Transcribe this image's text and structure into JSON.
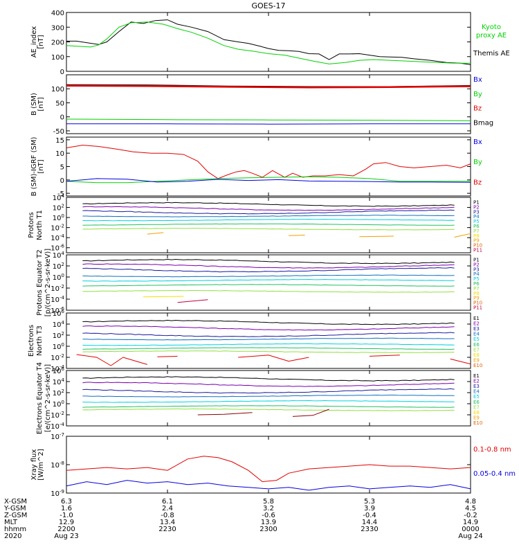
{
  "colors": {
    "black": "#000000",
    "red": "#e00000",
    "green": "#00d000",
    "blue": "#0000e0",
    "darkred": "#8b0000",
    "purple": "#7a00b0",
    "navy": "#1a1aa0",
    "teal": "#1070c0",
    "cyan": "#00d0e0",
    "green2": "#20c060",
    "lime": "#90e040",
    "yellow": "#f0e000",
    "orange": "#f0a000",
    "orangered": "#e06000",
    "crimson": "#c00040"
  },
  "chart_data": [
    {
      "type": "line",
      "title": "GOES-17",
      "ylabel": "AE_index [nT]",
      "ylim": [
        0,
        400
      ],
      "yticks": [
        "400",
        "300",
        "200",
        "100",
        "0"
      ],
      "x_range_hours": [
        22.0,
        24.0
      ],
      "legend": [
        {
          "label": "Kyoto proxy AE",
          "color": "#00d000"
        },
        {
          "label": "Themis AE",
          "color": "#000000"
        }
      ],
      "series": [
        {
          "name": "Themis AE",
          "color": "#000000",
          "x": [
            22.0,
            22.05,
            22.1,
            22.16,
            22.2,
            22.26,
            22.32,
            22.38,
            22.44,
            22.5,
            22.55,
            22.62,
            22.7,
            22.78,
            22.85,
            22.9,
            22.96,
            23.0,
            23.05,
            23.1,
            23.15,
            23.2,
            23.25,
            23.3,
            23.35,
            23.4,
            23.45,
            23.5,
            23.55,
            23.6,
            23.66,
            23.72,
            23.8,
            23.88,
            23.95,
            24.0
          ],
          "y": [
            205,
            205,
            195,
            182,
            200,
            270,
            335,
            325,
            345,
            350,
            320,
            300,
            270,
            215,
            200,
            190,
            170,
            155,
            142,
            140,
            135,
            120,
            118,
            80,
            118,
            118,
            120,
            110,
            100,
            98,
            95,
            85,
            75,
            60,
            55,
            45
          ]
        },
        {
          "name": "Kyoto proxy AE",
          "color": "#00d000",
          "x": [
            22.0,
            22.06,
            22.12,
            22.16,
            22.2,
            22.26,
            22.32,
            22.4,
            22.48,
            22.55,
            22.62,
            22.7,
            22.78,
            22.85,
            22.92,
            23.0,
            23.08,
            23.15,
            23.22,
            23.3,
            23.38,
            23.45,
            23.52,
            23.6,
            23.68,
            23.76,
            23.84,
            23.92,
            24.0
          ],
          "y": [
            175,
            170,
            165,
            180,
            220,
            300,
            330,
            335,
            320,
            290,
            265,
            225,
            175,
            150,
            138,
            120,
            110,
            90,
            70,
            50,
            60,
            75,
            80,
            75,
            70,
            65,
            60,
            55,
            55
          ]
        }
      ]
    },
    {
      "type": "line",
      "ylabel": "B (SM) [nT]",
      "ylim": [
        -60,
        150
      ],
      "yticks": [
        "100",
        "50",
        "0",
        "-50"
      ],
      "legend": [
        {
          "label": "Bx",
          "color": "#0000e0"
        },
        {
          "label": "By",
          "color": "#00d000"
        },
        {
          "label": "Bz",
          "color": "#e00000"
        },
        {
          "label": "Bmag",
          "color": "#000000"
        }
      ],
      "series": [
        {
          "name": "Bx",
          "color": "#0000e0",
          "x": [
            22.0,
            22.5,
            23.0,
            23.5,
            24.0
          ],
          "y": [
            -25,
            -25,
            -26,
            -25,
            -25
          ]
        },
        {
          "name": "By",
          "color": "#00d000",
          "x": [
            22.0,
            22.5,
            23.0,
            23.5,
            24.0
          ],
          "y": [
            -8,
            -10,
            -11,
            -12,
            -14
          ]
        },
        {
          "name": "Bmag",
          "color": "#000000",
          "x": [
            22.0,
            22.4,
            22.8,
            23.2,
            23.6,
            24.0
          ],
          "y": [
            115,
            114,
            110,
            108,
            108,
            112
          ]
        },
        {
          "name": "Bz",
          "color": "#e00000",
          "x": [
            22.0,
            22.4,
            22.8,
            23.2,
            23.6,
            24.0
          ],
          "y": [
            111,
            110,
            107,
            105,
            106,
            109
          ]
        }
      ]
    },
    {
      "type": "line",
      "ylabel": "B (SM)-IGRF (SM) [nT]",
      "ylim": [
        -6,
        16
      ],
      "yticks": [
        "15",
        "10",
        "5",
        "0",
        "-5"
      ],
      "legend": [
        {
          "label": "Bx",
          "color": "#0000e0"
        },
        {
          "label": "By",
          "color": "#00d000"
        },
        {
          "label": "Bz",
          "color": "#e00000"
        }
      ],
      "series": [
        {
          "name": "Bz",
          "color": "#e00000",
          "x": [
            22.0,
            22.08,
            22.16,
            22.25,
            22.33,
            22.42,
            22.5,
            22.58,
            22.65,
            22.7,
            22.75,
            22.8,
            22.84,
            22.88,
            22.92,
            22.97,
            23.02,
            23.08,
            23.12,
            23.17,
            23.22,
            23.28,
            23.35,
            23.42,
            23.48,
            23.52,
            23.58,
            23.65,
            23.72,
            23.8,
            23.88,
            23.95,
            24.0
          ],
          "y": [
            12,
            13,
            12.5,
            11.5,
            10.5,
            10,
            10,
            9.5,
            7,
            3,
            0.5,
            2,
            3,
            3.5,
            2.5,
            1,
            3.5,
            1,
            2.5,
            1,
            1.5,
            1.5,
            2,
            1.5,
            4,
            6,
            6.5,
            5,
            4.5,
            5,
            5.5,
            4.5,
            6
          ]
        },
        {
          "name": "By",
          "color": "#00d000",
          "x": [
            22.0,
            22.15,
            22.3,
            22.45,
            22.6,
            22.75,
            22.9,
            23.05,
            23.2,
            23.35,
            23.5,
            23.65,
            23.8,
            24.0
          ],
          "y": [
            -0.5,
            -1,
            -1,
            -0.5,
            0,
            0.5,
            0.8,
            1,
            1.2,
            1,
            0.5,
            -0.5,
            -0.5,
            -0.5
          ]
        },
        {
          "name": "Bx",
          "color": "#0000e0",
          "x": [
            22.0,
            22.15,
            22.3,
            22.45,
            22.6,
            22.75,
            22.9,
            23.05,
            23.2,
            23.35,
            23.5,
            23.65,
            23.8,
            24.0
          ],
          "y": [
            -0.5,
            0.5,
            0.3,
            -0.8,
            -0.5,
            0.2,
            -0.2,
            0.1,
            -0.4,
            -0.5,
            -0.6,
            -0.8,
            -0.8,
            -0.9
          ]
        }
      ]
    },
    {
      "type": "line",
      "ylabel": "Protons North T1",
      "yscale": "log",
      "ylim_exp": [
        -7,
        4
      ],
      "yticks": [
        "10^4",
        "10^2",
        "10^0",
        "10^-2",
        "10^-4",
        "10^-6"
      ],
      "channels": [
        "P1",
        "P2",
        "P3",
        "P4",
        "P5",
        "P6",
        "P7",
        "P8",
        "P9",
        "P10",
        "P11"
      ],
      "levels_exp": [
        2.6,
        1.8,
        1.1,
        0.3,
        -0.5,
        -1.4,
        -2.3
      ],
      "trace_colors": [
        "#000000",
        "#7a00b0",
        "#1a1aa0",
        "#1070c0",
        "#00d0e0",
        "#20c060",
        "#90e040",
        "#f0e000",
        "#f0a000",
        "#e06000",
        "#c00040"
      ],
      "fragments": [
        {
          "color": "#f0a000",
          "x": [
            22.4,
            22.48
          ],
          "y": [
            -3.3,
            -3.0
          ]
        },
        {
          "color": "#f0a000",
          "x": [
            23.1,
            23.18
          ],
          "y": [
            -3.6,
            -3.5
          ]
        },
        {
          "color": "#f0a000",
          "x": [
            23.45,
            23.62
          ],
          "y": [
            -3.8,
            -3.7
          ]
        },
        {
          "color": "#f0a000",
          "x": [
            23.92,
            24.0
          ],
          "y": [
            -3.9,
            -3.2
          ]
        }
      ]
    },
    {
      "type": "line",
      "ylabel": "Protons Equator T2 [p/(cm^2-s-sr-keV)]",
      "yscale": "log",
      "ylim_exp": [
        -6,
        4
      ],
      "yticks": [
        "10^4",
        "10^2",
        "10^0",
        "10^-2",
        "10^-4",
        "10^-6"
      ],
      "channels": [
        "P1",
        "P2",
        "P3",
        "P4",
        "P5",
        "P6",
        "P7",
        "P8",
        "P9",
        "P10",
        "P11"
      ],
      "levels_exp": [
        2.8,
        2.0,
        1.3,
        0.2,
        -0.6,
        -1.5,
        -2.6
      ],
      "trace_colors": [
        "#000000",
        "#7a00b0",
        "#1a1aa0",
        "#1070c0",
        "#00d0e0",
        "#20c060",
        "#90e040",
        "#f0e000",
        "#f0a000",
        "#e06000",
        "#c00040"
      ],
      "fragments": [
        {
          "color": "#f0e000",
          "x": [
            22.38,
            22.58
          ],
          "y": [
            -3.6,
            -3.5
          ]
        },
        {
          "color": "#c00040",
          "x": [
            22.55,
            22.7
          ],
          "y": [
            -4.6,
            -4.1
          ]
        }
      ]
    },
    {
      "type": "line",
      "ylabel": "Electrons North T3",
      "yscale": "log",
      "ylim_exp": [
        -4,
        6
      ],
      "yticks": [
        "10^6",
        "10^4",
        "10^2",
        "10^0",
        "10^-2",
        "10^-4"
      ],
      "channels": [
        "E1",
        "E2",
        "E3",
        "E4",
        "E5",
        "E6",
        "E7",
        "E8",
        "E9",
        "E10"
      ],
      "levels_exp": [
        4.3,
        3.3,
        2.1,
        1.3,
        0.3,
        -0.4,
        -1.0
      ],
      "trace_colors": [
        "#000000",
        "#7a00b0",
        "#1a1aa0",
        "#1070c0",
        "#00d0e0",
        "#20c060",
        "#90e040",
        "#f0e000",
        "#f0a000",
        "#e06000"
      ],
      "fragments": [
        {
          "color": "#e00000",
          "x": [
            22.05,
            22.15,
            22.22
          ],
          "y": [
            -1.5,
            -2.0,
            -3.5
          ]
        },
        {
          "color": "#e00000",
          "x": [
            22.22,
            22.28
          ],
          "y": [
            -3.5,
            -2.0
          ]
        },
        {
          "color": "#e00000",
          "x": [
            22.28,
            22.4
          ],
          "y": [
            -2.0,
            -3.3
          ]
        },
        {
          "color": "#e00000",
          "x": [
            22.45,
            22.55
          ],
          "y": [
            -1.9,
            -1.8
          ]
        },
        {
          "color": "#e00000",
          "x": [
            22.85,
            23.0,
            23.1
          ],
          "y": [
            -2.0,
            -1.6,
            -2.7
          ]
        },
        {
          "color": "#e00000",
          "x": [
            23.1,
            23.2
          ],
          "y": [
            -2.7,
            -2.0
          ]
        },
        {
          "color": "#e00000",
          "x": [
            23.5,
            23.65
          ],
          "y": [
            -1.8,
            -1.6
          ]
        },
        {
          "color": "#e00000",
          "x": [
            23.9,
            24.0
          ],
          "y": [
            -2.3,
            -3.2
          ]
        }
      ]
    },
    {
      "type": "line",
      "ylabel": "Electrons Equator T4 [e/(cm^2-s-sr-keV)]",
      "yscale": "log",
      "ylim_exp": [
        -4,
        6
      ],
      "yticks": [
        "10^6",
        "10^4",
        "10^2",
        "10^0",
        "10^-2",
        "10^-4"
      ],
      "channels": [
        "E1",
        "E2",
        "E3",
        "E4",
        "E5",
        "E6",
        "E7",
        "E8",
        "E9",
        "E10"
      ],
      "levels_exp": [
        4.5,
        3.5,
        2.3,
        1.4,
        0.4,
        -0.5,
        -1.1
      ],
      "trace_colors": [
        "#000000",
        "#7a00b0",
        "#1a1aa0",
        "#1070c0",
        "#00d0e0",
        "#20c060",
        "#90e040",
        "#f0e000",
        "#f0a000",
        "#e06000"
      ],
      "fragments": [
        {
          "color": "#8b0000",
          "x": [
            22.65,
            22.78,
            22.92
          ],
          "y": [
            -2.0,
            -1.9,
            -1.6
          ]
        },
        {
          "color": "#8b0000",
          "x": [
            23.12,
            23.22,
            23.3
          ],
          "y": [
            -2.3,
            -2.1,
            -1.0
          ]
        }
      ]
    },
    {
      "type": "line",
      "ylabel": "Xray flux [W/m^2]",
      "yscale": "log",
      "ylim_exp": [
        -9,
        -7
      ],
      "yticks": [
        "10^-7",
        "10^-8",
        "10^-9"
      ],
      "legend": [
        {
          "label": "0.1-0.8 nm",
          "color": "#e00000"
        },
        {
          "label": "0.05-0.4 nm",
          "color": "#0000e0"
        }
      ],
      "series": [
        {
          "name": "0.1-0.8 nm",
          "color": "#e00000",
          "x": [
            22.0,
            22.1,
            22.2,
            22.3,
            22.4,
            22.5,
            22.6,
            22.68,
            22.75,
            22.82,
            22.9,
            22.97,
            23.04,
            23.1,
            23.2,
            23.3,
            23.4,
            23.5,
            23.6,
            23.7,
            23.8,
            23.9,
            24.0
          ],
          "y": [
            -8.2,
            -8.15,
            -8.1,
            -8.15,
            -8.1,
            -8.2,
            -7.8,
            -7.7,
            -7.75,
            -7.9,
            -8.2,
            -8.6,
            -8.55,
            -8.3,
            -8.15,
            -8.1,
            -8.05,
            -8.0,
            -8.05,
            -8.05,
            -8.1,
            -8.15,
            -8.1
          ]
        },
        {
          "name": "0.05-0.4 nm",
          "color": "#0000e0",
          "x": [
            22.0,
            22.1,
            22.2,
            22.3,
            22.4,
            22.5,
            22.6,
            22.7,
            22.8,
            22.9,
            23.0,
            23.1,
            23.2,
            23.3,
            23.4,
            23.5,
            23.6,
            23.7,
            23.8,
            23.9,
            24.0
          ],
          "y": [
            -8.75,
            -8.6,
            -8.7,
            -8.55,
            -8.65,
            -8.6,
            -8.7,
            -8.65,
            -8.75,
            -8.8,
            -8.85,
            -8.8,
            -8.9,
            -8.8,
            -8.75,
            -8.85,
            -8.8,
            -8.75,
            -8.8,
            -8.7,
            -8.85
          ]
        }
      ]
    }
  ],
  "ephemeris": {
    "labels": [
      "X-GSM",
      "Y-GSM",
      "Z-GSM",
      "MLT",
      "hhmm",
      "2020"
    ],
    "columns": [
      {
        "values": [
          "6.3",
          "1.6",
          "-1.0",
          "12.9",
          "2200",
          "Aug 23"
        ]
      },
      {
        "values": [
          "6.1",
          "2.4",
          "-0.8",
          "13.4",
          "2230",
          ""
        ]
      },
      {
        "values": [
          "5.8",
          "3.2",
          "-0.6",
          "13.9",
          "2300",
          ""
        ]
      },
      {
        "values": [
          "5.3",
          "3.9",
          "-0.4",
          "14.4",
          "2330",
          ""
        ]
      },
      {
        "values": [
          "4.8",
          "4.5",
          "-0.2",
          "14.9",
          "0000",
          "Aug 24"
        ]
      }
    ]
  }
}
